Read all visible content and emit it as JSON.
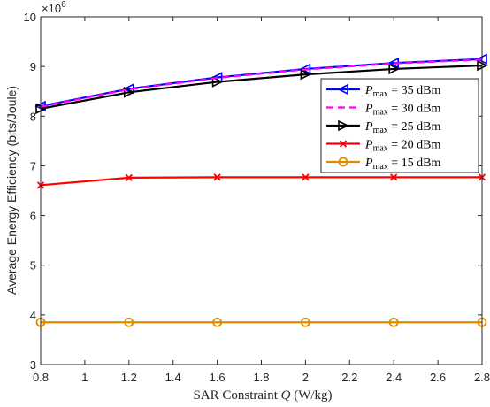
{
  "chart_data": {
    "type": "line",
    "xlabel": "SAR Constraint Q (W/kg)",
    "xlabel_prefix": "SAR Constraint ",
    "xlabel_var": "Q",
    "xlabel_suffix": " (W/kg)",
    "ylabel": "Average Energy Efficiency (bits/Joule)",
    "y_multiplier": "×10",
    "y_multiplier_exp": "6",
    "xlim": [
      0.8,
      2.8
    ],
    "ylim": [
      3,
      10
    ],
    "xticks": [
      "0.8",
      "1",
      "1.2",
      "1.4",
      "1.6",
      "1.8",
      "2",
      "2.2",
      "2.4",
      "2.6",
      "2.8"
    ],
    "yticks": [
      "3",
      "4",
      "5",
      "6",
      "7",
      "8",
      "9",
      "10"
    ],
    "grid": false,
    "legend_position": "top-right",
    "x": [
      0.8,
      1.2,
      1.6,
      2.0,
      2.4,
      2.8
    ],
    "series": [
      {
        "name": "P_max = 35 dBm",
        "legend_var": "P",
        "legend_sub": "max",
        "legend_rest": " = 35 dBm",
        "color": "#0000ff",
        "style": "solid",
        "marker": "triangle-left",
        "values": [
          8.2,
          8.55,
          8.78,
          8.95,
          9.07,
          9.15
        ]
      },
      {
        "name": "P_max = 30 dBm",
        "legend_var": "P",
        "legend_sub": "max",
        "legend_rest": " = 30 dBm",
        "color": "#ff00ff",
        "style": "dashed",
        "marker": "none",
        "values": [
          8.19,
          8.54,
          8.77,
          8.94,
          9.06,
          9.14
        ]
      },
      {
        "name": "P_max = 25 dBm",
        "legend_var": "P",
        "legend_sub": "max",
        "legend_rest": " = 25 dBm",
        "color": "#000000",
        "style": "solid",
        "marker": "triangle-right",
        "values": [
          8.15,
          8.48,
          8.69,
          8.84,
          8.95,
          9.02
        ]
      },
      {
        "name": "P_max = 20 dBm",
        "legend_var": "P",
        "legend_sub": "max",
        "legend_rest": " = 20 dBm",
        "color": "#ff0000",
        "style": "solid",
        "marker": "x",
        "values": [
          6.61,
          6.76,
          6.77,
          6.77,
          6.77,
          6.77
        ]
      },
      {
        "name": "P_max = 15 dBm",
        "legend_var": "P",
        "legend_sub": "max",
        "legend_rest": " = 15 dBm",
        "color": "#e08a00",
        "style": "solid",
        "marker": "circle",
        "values": [
          3.85,
          3.85,
          3.85,
          3.85,
          3.85,
          3.85
        ]
      }
    ]
  }
}
